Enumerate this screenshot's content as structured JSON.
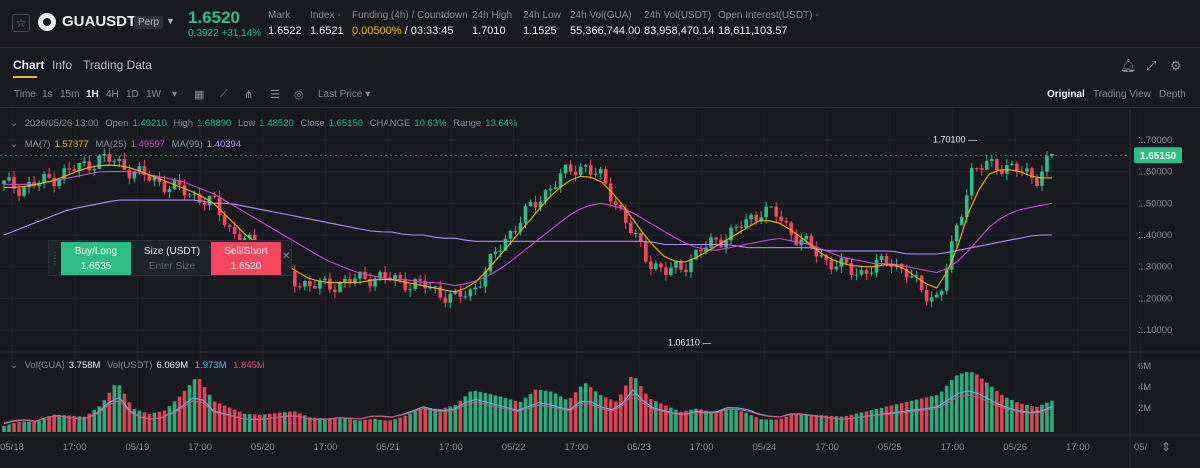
{
  "header": {
    "symbol": "GUAUSDT",
    "contract_type": "Perp",
    "last_price": "1.6520",
    "change": "0.3922 +31.14%",
    "stats": [
      {
        "label": "Mark",
        "value": "1.6522"
      },
      {
        "label": "Index ◦",
        "value": "1.6521"
      },
      {
        "label": "Funding (4h) / Countdown",
        "value_a": "0.00500%",
        "value_b": " / 03:33:45"
      },
      {
        "label": "24h High",
        "value": "1.7010"
      },
      {
        "label": "24h Low",
        "value": "1.1525"
      },
      {
        "label": "24h Vol(GUA)",
        "value": "55,366,744.00"
      },
      {
        "label": "24h Vol(USDT)",
        "value": "83,958,470.14"
      },
      {
        "label": "Open Interest(USDT) ◦",
        "value": "18,611,103.57"
      }
    ]
  },
  "tabs": [
    "Chart",
    "Info",
    "Trading Data"
  ],
  "toolbar": {
    "time_label": "Time",
    "intervals": [
      "1s",
      "15m",
      "1H",
      "4H",
      "1D",
      "1W"
    ],
    "active_interval": "1H",
    "price_source": "Last Price",
    "views": [
      "Original",
      "Trading View",
      "Depth"
    ],
    "active_view": "Original"
  },
  "legend": {
    "date": "2026/05/26 13:00",
    "open_label": "Open",
    "open": "1.49210",
    "high_label": "High",
    "high": "1.68890",
    "low_label": "Low",
    "low": "1.48520",
    "close_label": "Close",
    "close": "1.65150",
    "change_label": "CHANGE",
    "change": "10.63%",
    "range_label": "Range",
    "range": "13.64%",
    "ma7_label": "MA(7)",
    "ma7": "1.57877",
    "ma25_label": "MA(25)",
    "ma25": "1.49597",
    "ma99_label": "MA(99)",
    "ma99": "1.40394"
  },
  "volume_legend": {
    "vol_gua_label": "Vol(GUA)",
    "vol_gua": "3.758M",
    "vol_usdt_label": "Vol(USDT)",
    "vol_usdt": "6.069M",
    "ma_a": "1.973M",
    "ma_b": "1.845M"
  },
  "order_panel": {
    "buy_label": "Buy/Long",
    "buy_price": "1.6535",
    "size_label": "Size (USDT)",
    "size_placeholder": "Enter Size",
    "sell_label": "Sell/Short",
    "sell_price": "1.6520"
  },
  "colors": {
    "up": "#2ebd85",
    "down": "#f6465d",
    "ma7": "#f0b90b",
    "ma25": "#c94bd6",
    "ma99": "#b28cff",
    "vol_ma_a": "#4cc4e6",
    "vol_ma_b": "#e04f7a"
  },
  "chart_data": {
    "type": "candlestick",
    "price_ticks": [
      "1.70000",
      "1.60000",
      "1.50000",
      "1.40000",
      "1.30000",
      "1.20000",
      "1.10000"
    ],
    "ylim": [
      1.05,
      1.75
    ],
    "volume_ticks": [
      "6M",
      "4M",
      "2M"
    ],
    "x_ticks": [
      "05/18",
      "17:00",
      "05/19",
      "17:00",
      "05/20",
      "17:00",
      "05/21",
      "17:00",
      "05/22",
      "17:00",
      "05/23",
      "17:00",
      "05/24",
      "17:00",
      "05/25",
      "17:00",
      "05/26",
      "17:00",
      "05/"
    ],
    "current_price_label": "1.65150",
    "high_annotation": "1.70100",
    "low_annotation": "1.06110",
    "close_path": [
      1.56,
      1.55,
      1.56,
      1.58,
      1.6,
      1.62,
      1.64,
      1.63,
      1.6,
      1.58,
      1.56,
      1.54,
      1.52,
      1.5,
      1.42,
      1.38,
      1.34,
      1.3,
      1.26,
      1.24,
      1.24,
      1.25,
      1.26,
      1.27,
      1.26,
      1.25,
      1.24,
      1.22,
      1.2,
      1.22,
      1.3,
      1.38,
      1.45,
      1.5,
      1.56,
      1.6,
      1.62,
      1.58,
      1.5,
      1.4,
      1.32,
      1.28,
      1.3,
      1.34,
      1.38,
      1.4,
      1.44,
      1.48,
      1.46,
      1.4,
      1.36,
      1.32,
      1.3,
      1.28,
      1.3,
      1.32,
      1.28,
      1.22,
      1.2,
      1.4,
      1.6,
      1.62,
      1.62,
      1.6,
      1.58,
      1.65
    ],
    "volume_path": [
      0.2,
      0.3,
      0.25,
      0.4,
      0.35,
      0.3,
      0.5,
      0.9,
      0.4,
      0.3,
      0.35,
      0.6,
      0.9,
      0.5,
      0.4,
      0.3,
      0.3,
      0.35,
      0.4,
      0.3,
      0.3,
      0.35,
      0.3,
      0.4,
      0.35,
      0.45,
      0.6,
      0.5,
      0.55,
      0.8,
      0.7,
      0.6,
      0.5,
      0.7,
      0.65,
      0.5,
      0.8,
      0.6,
      0.5,
      1.0,
      0.6,
      0.5,
      0.4,
      0.5,
      0.45,
      0.6,
      0.55,
      0.4,
      0.35,
      0.45,
      0.4,
      0.35,
      0.3,
      0.35,
      0.4,
      0.45,
      0.5,
      0.55,
      0.6,
      0.9,
      1.0,
      0.8,
      0.6,
      0.5,
      0.45,
      0.6
    ],
    "ma7_path": [
      1.55,
      1.55,
      1.56,
      1.57,
      1.59,
      1.61,
      1.62,
      1.62,
      1.61,
      1.59,
      1.57,
      1.55,
      1.53,
      1.5,
      1.45,
      1.4,
      1.36,
      1.32,
      1.29,
      1.26,
      1.25,
      1.25,
      1.25,
      1.26,
      1.26,
      1.25,
      1.24,
      1.23,
      1.22,
      1.24,
      1.29,
      1.35,
      1.41,
      1.47,
      1.53,
      1.57,
      1.59,
      1.57,
      1.52,
      1.45,
      1.38,
      1.33,
      1.31,
      1.33,
      1.36,
      1.39,
      1.42,
      1.45,
      1.44,
      1.41,
      1.37,
      1.33,
      1.31,
      1.3,
      1.3,
      1.31,
      1.29,
      1.25,
      1.23,
      1.34,
      1.5,
      1.59,
      1.61,
      1.6,
      1.58,
      1.58
    ],
    "ma25_path": [
      1.56,
      1.56,
      1.56,
      1.57,
      1.58,
      1.59,
      1.6,
      1.6,
      1.6,
      1.59,
      1.58,
      1.57,
      1.55,
      1.53,
      1.5,
      1.47,
      1.44,
      1.41,
      1.38,
      1.35,
      1.32,
      1.3,
      1.28,
      1.27,
      1.26,
      1.26,
      1.25,
      1.25,
      1.24,
      1.25,
      1.27,
      1.3,
      1.34,
      1.38,
      1.42,
      1.46,
      1.49,
      1.5,
      1.49,
      1.47,
      1.44,
      1.41,
      1.38,
      1.36,
      1.35,
      1.36,
      1.37,
      1.38,
      1.39,
      1.38,
      1.37,
      1.35,
      1.33,
      1.32,
      1.31,
      1.31,
      1.3,
      1.29,
      1.28,
      1.31,
      1.36,
      1.42,
      1.46,
      1.48,
      1.49,
      1.5
    ],
    "ma99_path": [
      1.4,
      1.42,
      1.44,
      1.46,
      1.48,
      1.49,
      1.5,
      1.51,
      1.51,
      1.51,
      1.51,
      1.51,
      1.51,
      1.5,
      1.5,
      1.49,
      1.48,
      1.47,
      1.46,
      1.45,
      1.44,
      1.43,
      1.42,
      1.41,
      1.41,
      1.4,
      1.4,
      1.39,
      1.39,
      1.38,
      1.38,
      1.38,
      1.38,
      1.38,
      1.38,
      1.38,
      1.38,
      1.38,
      1.38,
      1.38,
      1.38,
      1.37,
      1.37,
      1.37,
      1.37,
      1.37,
      1.36,
      1.36,
      1.36,
      1.36,
      1.36,
      1.35,
      1.35,
      1.35,
      1.35,
      1.35,
      1.34,
      1.34,
      1.34,
      1.35,
      1.36,
      1.37,
      1.38,
      1.39,
      1.4,
      1.4
    ]
  }
}
